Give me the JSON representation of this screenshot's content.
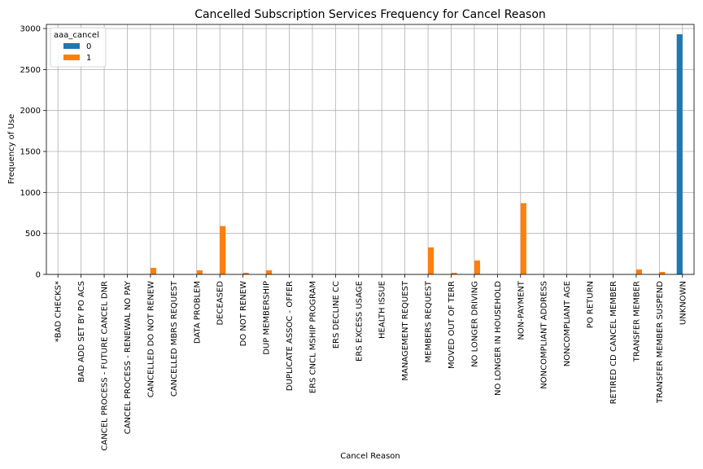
{
  "chart_data": {
    "type": "bar",
    "title": "Cancelled Subscription Services Frequency for Cancel Reason",
    "xlabel": "Cancel Reason",
    "ylabel": "Frequency of Use",
    "ylim": [
      0,
      3050
    ],
    "yticks": [
      0,
      500,
      1000,
      1500,
      2000,
      2500,
      3000
    ],
    "grid": true,
    "legend_title": "aaa_cancel",
    "legend_position": "top-left",
    "categories": [
      "*BAD CHECKS*",
      "BAD ADD SET BY PO ACS",
      "CANCEL PROCESS - FUTURE CANCEL DNR",
      "CANCEL PROCESS - RENEWAL NO PAY",
      "CANCELLED DO NOT RENEW",
      "CANCELLED MBRS REQUEST",
      "DATA PROBLEM",
      "DECEASED",
      "DO NOT RENEW",
      "DUP MEMBERSHIP",
      "DUPLICATE ASSOC - OFFER",
      "ERS CNCL MSHIP PROGRAM",
      "ERS DECLINE CC",
      "ERS EXCESS USAGE",
      "HEALTH ISSUE",
      "MANAGEMENT REQUEST",
      "MEMBERS REQUEST",
      "MOVED OUT OF TERR",
      "NO LONGER DRIVING",
      "NO LONGER IN HOUSEHOLD",
      "NON-PAYMENT",
      "NONCOMPLIANT ADDRESS",
      "NONCOMPLIANT AGE",
      "PO RETURN",
      "RETIRED CD CANCEL MEMBER",
      "TRANSFER MEMBER",
      "TRANSFER MEMBER SUSPEND",
      "UNKNOWN"
    ],
    "series": [
      {
        "name": "0",
        "color": "#1f77b4",
        "values": [
          0,
          0,
          0,
          0,
          0,
          0,
          0,
          0,
          0,
          0,
          0,
          0,
          0,
          0,
          0,
          0,
          0,
          0,
          0,
          0,
          0,
          0,
          0,
          0,
          0,
          0,
          0,
          2930
        ]
      },
      {
        "name": "1",
        "color": "#ff7f0e",
        "values": [
          1,
          2,
          1,
          1,
          80,
          2,
          50,
          590,
          20,
          50,
          2,
          2,
          2,
          2,
          2,
          2,
          330,
          20,
          170,
          3,
          870,
          2,
          2,
          2,
          2,
          60,
          30,
          0
        ]
      }
    ]
  }
}
